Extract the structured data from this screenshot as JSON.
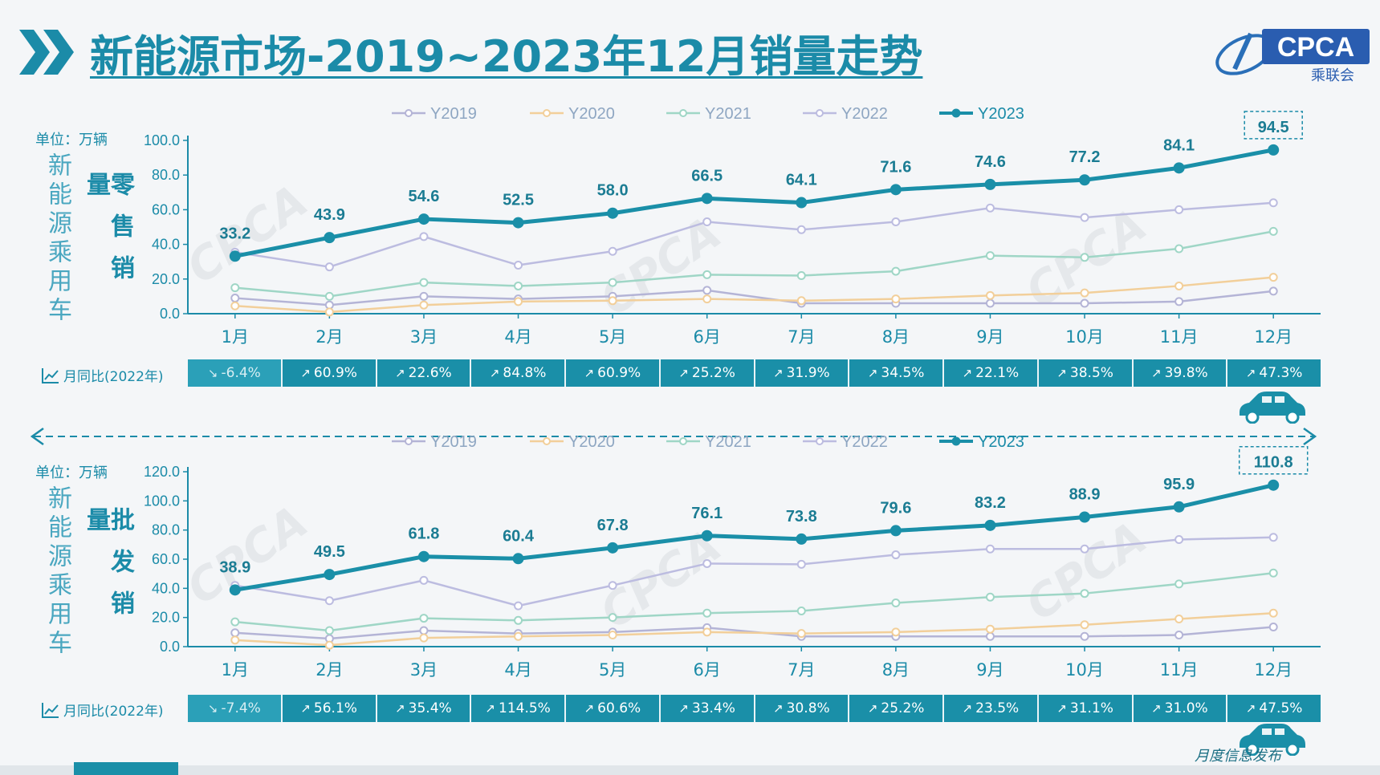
{
  "header": {
    "title": "新能源市场-2019~2023年12月销量走势",
    "logo_text": "CPCA",
    "logo_subtext": "乘联会",
    "brand_color": "#1b8ba8"
  },
  "footer": {
    "signature": "月度信息发布"
  },
  "common": {
    "unit": "单位：万辆",
    "side_label": "新能源乘用车",
    "yoy_label": "月同比(2022年)"
  },
  "retail": {
    "metric_label": "零售销量",
    "yoy": [
      {
        "text": "-6.4%",
        "dir": "down"
      },
      {
        "text": "60.9%",
        "dir": "up"
      },
      {
        "text": "22.6%",
        "dir": "up"
      },
      {
        "text": "84.8%",
        "dir": "up"
      },
      {
        "text": "60.9%",
        "dir": "up"
      },
      {
        "text": "25.2%",
        "dir": "up"
      },
      {
        "text": "31.9%",
        "dir": "up"
      },
      {
        "text": "34.5%",
        "dir": "up"
      },
      {
        "text": "22.1%",
        "dir": "up"
      },
      {
        "text": "38.5%",
        "dir": "up"
      },
      {
        "text": "39.8%",
        "dir": "up"
      },
      {
        "text": "47.3%",
        "dir": "up"
      }
    ]
  },
  "wholesale": {
    "metric_label": "批发销量",
    "yoy": [
      {
        "text": "-7.4%",
        "dir": "down"
      },
      {
        "text": "56.1%",
        "dir": "up"
      },
      {
        "text": "35.4%",
        "dir": "up"
      },
      {
        "text": "114.5%",
        "dir": "up"
      },
      {
        "text": "60.6%",
        "dir": "up"
      },
      {
        "text": "33.4%",
        "dir": "up"
      },
      {
        "text": "30.8%",
        "dir": "up"
      },
      {
        "text": "25.2%",
        "dir": "up"
      },
      {
        "text": "23.5%",
        "dir": "up"
      },
      {
        "text": "31.1%",
        "dir": "up"
      },
      {
        "text": "31.0%",
        "dir": "up"
      },
      {
        "text": "47.5%",
        "dir": "up"
      }
    ]
  },
  "chart_data": [
    {
      "type": "line",
      "categories": [
        "1月",
        "2月",
        "3月",
        "4月",
        "5月",
        "6月",
        "7月",
        "8月",
        "9月",
        "10月",
        "11月",
        "12月"
      ],
      "ylim": [
        0,
        100
      ],
      "yticks": [
        "0.0",
        "20.0",
        "40.0",
        "60.0",
        "80.0",
        "100.0"
      ],
      "ylabel": "单位：万辆",
      "legend_position": "top",
      "series": [
        {
          "name": "Y2019",
          "color": "#b4b4d6",
          "values": [
            9.0,
            5.0,
            10.0,
            8.5,
            10.0,
            13.5,
            6.0,
            6.0,
            6.0,
            6.0,
            7.0,
            13.0
          ]
        },
        {
          "name": "Y2020",
          "color": "#f2cf9a",
          "values": [
            4.5,
            1.0,
            5.0,
            7.0,
            7.5,
            8.5,
            7.5,
            8.5,
            10.5,
            12.0,
            16.0,
            21.0
          ]
        },
        {
          "name": "Y2021",
          "color": "#9fd6c6",
          "values": [
            15.0,
            10.0,
            18.0,
            16.0,
            18.0,
            22.5,
            22.0,
            24.5,
            33.5,
            32.5,
            37.5,
            47.5
          ]
        },
        {
          "name": "Y2022",
          "color": "#bcbce0",
          "values": [
            35.5,
            27.0,
            44.5,
            28.0,
            36.0,
            53.0,
            48.5,
            53.0,
            61.0,
            55.5,
            60.0,
            64.0
          ]
        },
        {
          "name": "Y2023",
          "color": "#1a8fa8",
          "values": [
            33.2,
            43.9,
            54.6,
            52.5,
            58.0,
            66.5,
            64.1,
            71.6,
            74.6,
            77.2,
            84.1,
            94.5
          ],
          "labels": [
            "33.2",
            "43.9",
            "54.6",
            "52.5",
            "58.0",
            "66.5",
            "64.1",
            "71.6",
            "74.6",
            "77.2",
            "84.1",
            "94.5"
          ]
        }
      ]
    },
    {
      "type": "line",
      "categories": [
        "1月",
        "2月",
        "3月",
        "4月",
        "5月",
        "6月",
        "7月",
        "8月",
        "9月",
        "10月",
        "11月",
        "12月"
      ],
      "ylim": [
        0,
        120
      ],
      "yticks": [
        "0.0",
        "20.0",
        "40.0",
        "60.0",
        "80.0",
        "100.0",
        "120.0"
      ],
      "ylabel": "单位：万辆",
      "legend_position": "top",
      "series": [
        {
          "name": "Y2019",
          "color": "#b4b4d6",
          "values": [
            9.5,
            5.5,
            11.0,
            9.0,
            10.0,
            13.0,
            7.0,
            7.0,
            7.0,
            7.0,
            8.0,
            13.5
          ]
        },
        {
          "name": "Y2020",
          "color": "#f2cf9a",
          "values": [
            4.5,
            1.0,
            6.0,
            7.0,
            8.0,
            10.0,
            9.0,
            10.0,
            12.0,
            15.0,
            19.0,
            23.0
          ]
        },
        {
          "name": "Y2021",
          "color": "#9fd6c6",
          "values": [
            17.0,
            11.0,
            19.5,
            18.0,
            20.0,
            23.0,
            24.5,
            30.0,
            34.0,
            36.5,
            43.0,
            50.5
          ]
        },
        {
          "name": "Y2022",
          "color": "#bcbce0",
          "values": [
            42.0,
            31.5,
            45.5,
            28.0,
            42.0,
            57.0,
            56.5,
            63.0,
            67.0,
            67.0,
            73.5,
            75.0
          ]
        },
        {
          "name": "Y2023",
          "color": "#1a8fa8",
          "values": [
            38.9,
            49.5,
            61.8,
            60.4,
            67.8,
            76.1,
            73.8,
            79.6,
            83.2,
            88.9,
            95.9,
            110.8
          ],
          "labels": [
            "38.9",
            "49.5",
            "61.8",
            "60.4",
            "67.8",
            "76.1",
            "73.8",
            "79.6",
            "83.2",
            "88.9",
            "95.9",
            "110.8"
          ]
        }
      ]
    }
  ]
}
